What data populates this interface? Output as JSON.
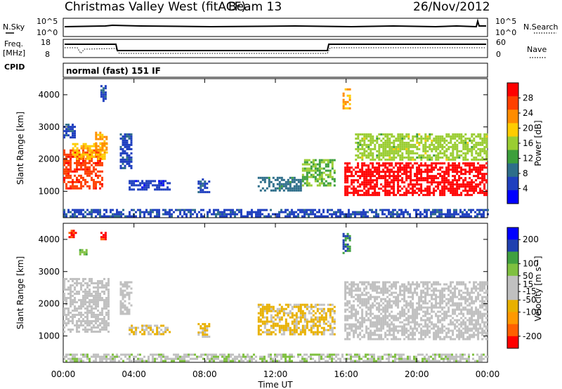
{
  "header": {
    "station": "Christmas Valley West (fitACF)",
    "beam": "Beam 13",
    "date": "26/Nov/2012"
  },
  "top_panels": {
    "nsky_label": "N.Sky",
    "nsearch_label": "N.Search",
    "nsky_ticks": [
      "10^5",
      "10^0"
    ],
    "nsearch_ticks": [
      "10^5",
      "10^0"
    ],
    "freq_label_1": "Freq.",
    "freq_label_2": "[MHz]",
    "freq_ticks": [
      "18",
      "8"
    ],
    "nave_label": "Nave",
    "nave_ticks": [
      "60",
      "0"
    ],
    "cpid_label": "CPID",
    "cpid_text": "normal (fast) 151 IF"
  },
  "colors": {
    "power": [
      "#0000ff",
      "#1f3fbf",
      "#2e6e8a",
      "#3c9f3c",
      "#9acd32",
      "#ffcc00",
      "#ff8c00",
      "#ff4000",
      "#ff0000"
    ],
    "velocity": [
      "#ff0000",
      "#ff6000",
      "#ff9900",
      "#e8b000",
      "#c0c0c0",
      "#c0c0c0",
      "#7fc040",
      "#40a040",
      "#2040b0",
      "#0000ff"
    ]
  },
  "chart_data": [
    {
      "type": "heatmap",
      "quantity": "Power",
      "xlabel": "Time UT",
      "ylabel": "Slant Range [km]",
      "x_ticks": [
        "00:00",
        "04:00",
        "08:00",
        "12:00",
        "16:00",
        "20:00",
        "00:00"
      ],
      "xlim_hours": [
        0,
        24
      ],
      "y_ticks": [
        1000,
        2000,
        3000,
        4000
      ],
      "ylim_km": [
        180,
        4500
      ],
      "colorbar_label": "Power [dB]",
      "colorbar_range": [
        0,
        32
      ],
      "colorbar_ticks": [
        4,
        8,
        12,
        16,
        20,
        24,
        28
      ],
      "echo_regions": [
        {
          "t0": 0.0,
          "t1": 0.6,
          "r0": 2700,
          "r1": 3100,
          "level": 6
        },
        {
          "t0": 0.0,
          "t1": 2.2,
          "r0": 1100,
          "r1": 2300,
          "level": 27
        },
        {
          "t0": 0.5,
          "t1": 2.5,
          "r0": 2000,
          "r1": 2500,
          "level": 20
        },
        {
          "t0": 1.8,
          "t1": 2.4,
          "r0": 2300,
          "r1": 2850,
          "level": 22
        },
        {
          "t0": 2.1,
          "t1": 2.4,
          "r0": 3800,
          "r1": 4300,
          "level": 6
        },
        {
          "t0": 3.2,
          "t1": 3.8,
          "r0": 1700,
          "r1": 2800,
          "level": 6
        },
        {
          "t0": 3.7,
          "t1": 6.0,
          "r0": 1050,
          "r1": 1350,
          "level": 5
        },
        {
          "t0": 7.6,
          "t1": 8.2,
          "r0": 1000,
          "r1": 1400,
          "level": 6
        },
        {
          "t0": 11.0,
          "t1": 13.5,
          "r0": 1050,
          "r1": 1450,
          "level": 9
        },
        {
          "t0": 13.5,
          "t1": 15.4,
          "r0": 1150,
          "r1": 2000,
          "level": 14
        },
        {
          "t0": 15.8,
          "t1": 16.2,
          "r0": 3550,
          "r1": 4200,
          "level": 22
        },
        {
          "t0": 15.9,
          "t1": 24.0,
          "r0": 900,
          "r1": 1900,
          "level": 31
        },
        {
          "t0": 16.5,
          "t1": 24.0,
          "r0": 2000,
          "r1": 2800,
          "level": 16
        },
        {
          "t0": 0.0,
          "t1": 24.0,
          "r0": 200,
          "r1": 450,
          "level": 6
        }
      ]
    },
    {
      "type": "heatmap",
      "quantity": "Velocity",
      "xlabel": "Time UT",
      "ylabel": "Slant Range [km]",
      "x_ticks": [
        "00:00",
        "04:00",
        "08:00",
        "12:00",
        "16:00",
        "20:00",
        "00:00"
      ],
      "xlim_hours": [
        0,
        24
      ],
      "y_ticks": [
        1000,
        2000,
        3000,
        4000
      ],
      "ylim_km": [
        180,
        4500
      ],
      "colorbar_label": "Velocity [m s⁻¹]",
      "colorbar_range": [
        -250,
        250
      ],
      "colorbar_ticks": [
        200,
        100,
        50,
        15,
        -15,
        -50,
        -100,
        -200
      ],
      "echo_regions": [
        {
          "t0": 0.0,
          "t1": 2.6,
          "r0": 1100,
          "r1": 2800,
          "level": 0
        },
        {
          "t0": 0.9,
          "t1": 1.3,
          "r0": 3550,
          "r1": 3700,
          "level": 80
        },
        {
          "t0": 0.3,
          "t1": 0.7,
          "r0": 4100,
          "r1": 4300,
          "level": -220
        },
        {
          "t0": 2.1,
          "t1": 2.4,
          "r0": 4000,
          "r1": 4300,
          "level": -220
        },
        {
          "t0": 3.2,
          "t1": 3.8,
          "r0": 1700,
          "r1": 2700,
          "level": 0
        },
        {
          "t0": 3.7,
          "t1": 6.0,
          "r0": 1050,
          "r1": 1350,
          "level": -60
        },
        {
          "t0": 7.6,
          "t1": 8.2,
          "r0": 1000,
          "r1": 1400,
          "level": -60
        },
        {
          "t0": 11.0,
          "t1": 15.4,
          "r0": 1050,
          "r1": 2000,
          "level": -60
        },
        {
          "t0": 15.8,
          "t1": 16.2,
          "r0": 3550,
          "r1": 4200,
          "level": 150
        },
        {
          "t0": 15.9,
          "t1": 24.0,
          "r0": 900,
          "r1": 2700,
          "level": 0
        },
        {
          "t0": 0.0,
          "t1": 24.0,
          "r0": 200,
          "r1": 450,
          "level": 40
        }
      ]
    }
  ]
}
